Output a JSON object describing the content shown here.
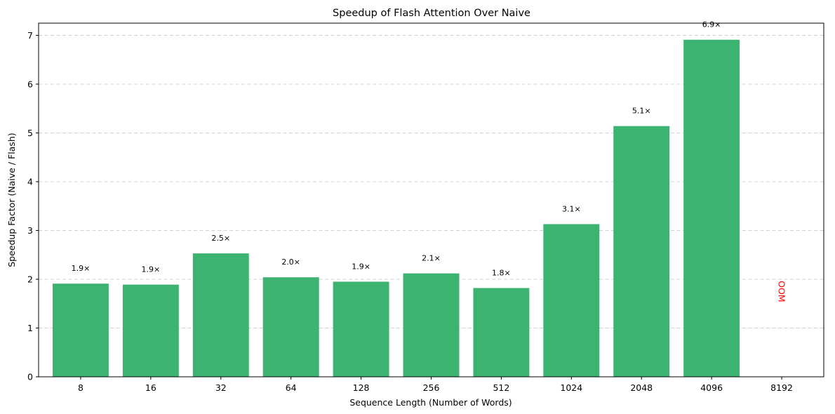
{
  "chart_data": {
    "type": "bar",
    "title": "Speedup of Flash Attention Over Naive",
    "xlabel": "Sequence Length (Number of Words)",
    "ylabel": "Speedup Factor (Naive / Flash)",
    "ylim": [
      0,
      7.25
    ],
    "yticks": [
      0,
      1,
      2,
      3,
      4,
      5,
      6,
      7
    ],
    "grid": "y-dashed",
    "categories": [
      "8",
      "16",
      "32",
      "64",
      "128",
      "256",
      "512",
      "1024",
      "2048",
      "4096",
      "8192"
    ],
    "values": [
      1.91,
      1.89,
      2.53,
      2.04,
      1.95,
      2.12,
      1.82,
      3.13,
      5.14,
      6.91,
      null
    ],
    "bar_labels": [
      "1.9×",
      "1.9×",
      "2.5×",
      "2.0×",
      "1.9×",
      "2.1×",
      "1.8×",
      "3.1×",
      "5.1×",
      "6.9×",
      ""
    ],
    "annotations": [
      {
        "category": "8192",
        "text": "OOM",
        "y": 1.75,
        "rotation": 90,
        "color": "#ff0000"
      }
    ],
    "bar_color": "#3cb371"
  }
}
